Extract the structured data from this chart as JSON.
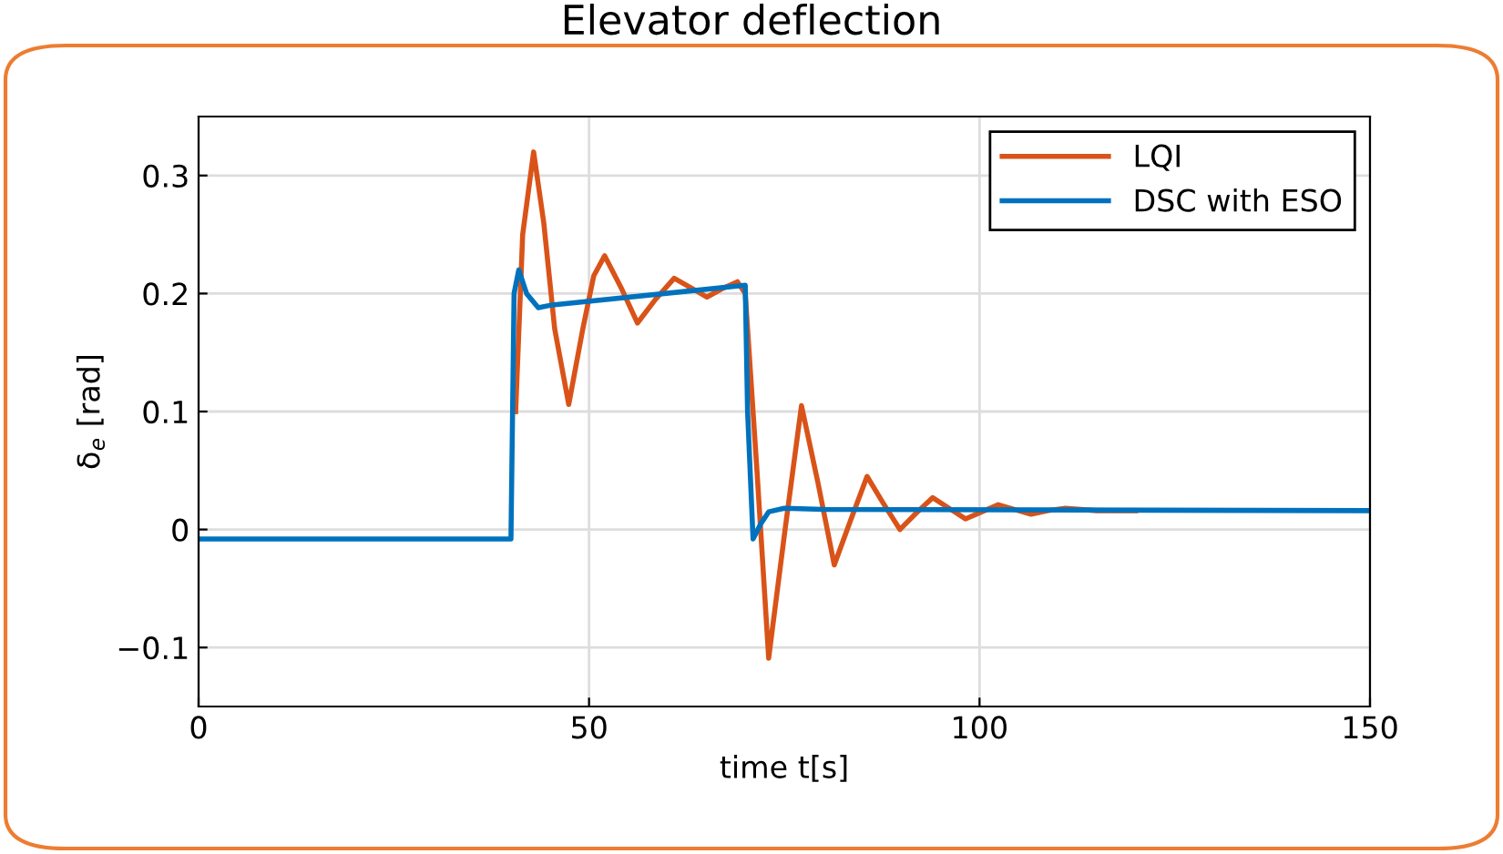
{
  "chart_data": {
    "type": "line",
    "title": "Elevator deflection",
    "xlabel": "time t[s]",
    "ylabel": "δ$_{e}$ [rad]",
    "xlim": [
      0,
      150
    ],
    "xticks": [
      0,
      50,
      100,
      150
    ],
    "ylim": [
      -0.15,
      0.35
    ],
    "yticks": [
      {
        "value": -0.1,
        "label": "−0.1"
      },
      0,
      0.1,
      0.2,
      0.3
    ],
    "grid": true,
    "legend": "top right",
    "line_style": "solid",
    "marker": "none",
    "series": [
      {
        "name": "LQI",
        "color": "#d95319",
        "x": [
          40.6,
          41.5,
          42.9,
          44.2,
          45.6,
          47.4,
          49.2,
          50.6,
          52,
          54.1,
          56.2,
          58.5,
          60.9,
          63,
          65.1,
          67,
          69,
          70,
          71.5,
          73,
          75.1,
          77.2,
          79.3,
          81.4,
          83.5,
          85.6,
          87.7,
          89.8,
          91.9,
          94,
          96.1,
          98.2,
          100.3,
          102.4,
          104.5,
          106.6,
          108.8,
          111,
          115,
          120
        ],
        "values": [
          0.1,
          0.25,
          0.32,
          0.26,
          0.17,
          0.106,
          0.17,
          0.215,
          0.232,
          0.205,
          0.175,
          0.195,
          0.213,
          0.205,
          0.197,
          0.204,
          0.21,
          0.2,
          0.05,
          -0.109,
          0.0,
          0.105,
          0.04,
          -0.03,
          0.008,
          0.045,
          0.022,
          0.0,
          0.014,
          0.027,
          0.018,
          0.009,
          0.015,
          0.021,
          0.017,
          0.013,
          0.016,
          0.018,
          0.016,
          0.016
        ]
      },
      {
        "name": "DSC with ESO",
        "color": "#0072bd",
        "x": [
          0,
          40,
          40.4,
          41,
          42,
          43.5,
          45,
          70,
          70.3,
          71,
          72,
          73,
          75,
          80,
          150
        ],
        "values": [
          -0.008,
          -0.008,
          0.2,
          0.22,
          0.2,
          0.188,
          0.19,
          0.207,
          0.1,
          -0.008,
          0.005,
          0.015,
          0.018,
          0.017,
          0.016
        ]
      }
    ]
  }
}
